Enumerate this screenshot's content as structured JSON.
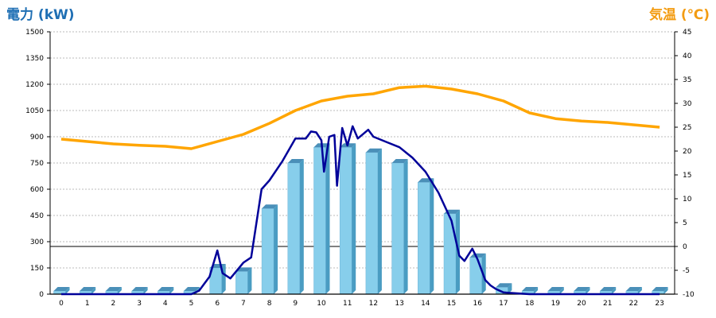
{
  "chart_data": {
    "type": "bar",
    "left_axis_title": "電力 (kW)",
    "right_axis_title": "気温 (℃)",
    "x": [
      0,
      1,
      2,
      3,
      4,
      5,
      6,
      7,
      8,
      9,
      10,
      11,
      12,
      13,
      14,
      15,
      16,
      17,
      18,
      19,
      20,
      21,
      22,
      23
    ],
    "y_left_ticks": [
      0,
      150,
      300,
      450,
      600,
      750,
      900,
      1050,
      1200,
      1350,
      1500
    ],
    "y_left_lim": [
      0,
      1500
    ],
    "y_right_ticks": [
      -10,
      -5,
      0,
      5,
      10,
      15,
      20,
      25,
      30,
      35,
      40,
      45
    ],
    "y_right_lim": [
      -10,
      45
    ],
    "reference_line_right": 0,
    "grid": true,
    "colors": {
      "bar": "#87ceeb",
      "bar_side": "#4a9cc2",
      "bar_top": "#4a8fb8",
      "power_line": "#000099",
      "temp_line": "#ffa500",
      "title_left": "#1f6fb4",
      "title_right": "#f39c12"
    },
    "series": [
      {
        "axis": "left",
        "kind": "bar",
        "values": [
          0,
          0,
          0,
          0,
          0,
          0,
          150,
          130,
          490,
          750,
          840,
          840,
          810,
          750,
          640,
          460,
          210,
          40,
          0,
          0,
          0,
          0,
          0,
          0
        ]
      },
      {
        "axis": "left",
        "kind": "line",
        "points": [
          [
            0,
            0
          ],
          [
            1,
            0
          ],
          [
            2,
            0
          ],
          [
            3,
            0
          ],
          [
            4,
            0
          ],
          [
            5,
            0
          ],
          [
            5.3,
            20
          ],
          [
            5.7,
            100
          ],
          [
            6,
            250
          ],
          [
            6.2,
            120
          ],
          [
            6.5,
            90
          ],
          [
            7,
            180
          ],
          [
            7.3,
            210
          ],
          [
            7.7,
            600
          ],
          [
            8,
            650
          ],
          [
            8.5,
            760
          ],
          [
            9,
            890
          ],
          [
            9.4,
            890
          ],
          [
            9.6,
            930
          ],
          [
            9.8,
            925
          ],
          [
            10,
            880
          ],
          [
            10.1,
            700
          ],
          [
            10.3,
            900
          ],
          [
            10.5,
            910
          ],
          [
            10.6,
            620
          ],
          [
            10.8,
            950
          ],
          [
            11,
            850
          ],
          [
            11.2,
            960
          ],
          [
            11.4,
            890
          ],
          [
            11.8,
            940
          ],
          [
            12,
            900
          ],
          [
            12.5,
            870
          ],
          [
            13,
            840
          ],
          [
            13.5,
            780
          ],
          [
            14,
            700
          ],
          [
            14.5,
            580
          ],
          [
            15,
            420
          ],
          [
            15.3,
            220
          ],
          [
            15.5,
            190
          ],
          [
            15.8,
            260
          ],
          [
            16,
            200
          ],
          [
            16.3,
            80
          ],
          [
            16.5,
            50
          ],
          [
            16.7,
            30
          ],
          [
            17,
            10
          ],
          [
            18,
            0
          ],
          [
            19,
            0
          ],
          [
            20,
            0
          ],
          [
            21,
            0
          ],
          [
            22,
            0
          ],
          [
            23,
            0
          ]
        ]
      },
      {
        "axis": "right",
        "kind": "line",
        "values": [
          22.5,
          22,
          21.5,
          21.2,
          21,
          20.5,
          22,
          23.5,
          25.8,
          28.5,
          30.5,
          31.5,
          32,
          33.3,
          33.6,
          33,
          32,
          30.5,
          28,
          26.8,
          26.3,
          26,
          25.5,
          25
        ]
      }
    ]
  }
}
